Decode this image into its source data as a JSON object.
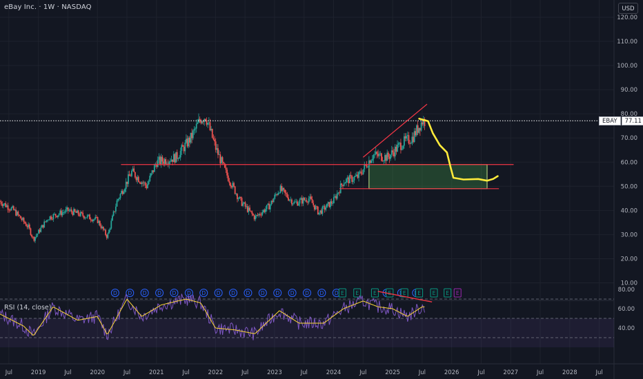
{
  "header": {
    "title": "eBay Inc. · 1W · NASDAQ",
    "currency": "USD"
  },
  "price_marker": {
    "symbol": "EBAY",
    "value": "77.11"
  },
  "rsi": {
    "label": "RSI (14, close)",
    "levels": [
      "80.00",
      "60.00",
      "40.00"
    ]
  },
  "price_axis": {
    "ticks": [
      "120.00",
      "110.00",
      "100.00",
      "90.00",
      "80.00",
      "70.00",
      "60.00",
      "50.00",
      "40.00",
      "30.00",
      "20.00",
      "10.00"
    ]
  },
  "time_axis": {
    "ticks": [
      "Jul",
      "2019",
      "Jul",
      "2020",
      "Jul",
      "2021",
      "Jul",
      "2022",
      "Jul",
      "2023",
      "Jul",
      "2024",
      "Jul",
      "2025",
      "Jul",
      "2026",
      "Jul",
      "2027",
      "Jul",
      "2028",
      "Jul"
    ]
  },
  "events": {
    "dividends": [
      "D",
      "D",
      "D",
      "D",
      "D",
      "D",
      "D",
      "D",
      "D",
      "D",
      "D",
      "D",
      "D",
      "D",
      "D",
      "D",
      "D",
      "D",
      "D"
    ],
    "earnings_glyph": "E"
  },
  "colors": {
    "background": "#131722",
    "grid": "#1e222d",
    "up_candle": "#26a69a",
    "down_candle": "#ef5350",
    "trend_line": "#f23645",
    "projection": "#ffeb3b",
    "target_box": "#4caf50",
    "rsi_line": "#7e57c2",
    "rsi_ma": "#fdd835"
  },
  "chart_data": {
    "type": "candlestick",
    "symbol": "EBAY",
    "interval": "1W",
    "y_range": [
      0,
      122
    ],
    "x_range": [
      "2018-05",
      "2028-09"
    ],
    "last_close": 77.11,
    "price_path": [
      [
        "2018-05",
        44
      ],
      [
        "2018-08",
        40
      ],
      [
        "2018-11",
        33
      ],
      [
        "2018-12",
        28
      ],
      [
        "2019-03",
        37
      ],
      [
        "2019-07",
        40
      ],
      [
        "2019-10",
        38
      ],
      [
        "2020-01",
        36
      ],
      [
        "2020-03",
        29
      ],
      [
        "2020-05",
        44
      ],
      [
        "2020-08",
        56
      ],
      [
        "2020-11",
        50
      ],
      [
        "2021-01",
        60
      ],
      [
        "2021-05",
        62
      ],
      [
        "2021-08",
        70
      ],
      [
        "2021-10",
        78
      ],
      [
        "2021-11",
        79
      ],
      [
        "2022-01",
        66
      ],
      [
        "2022-03",
        56
      ],
      [
        "2022-06",
        44
      ],
      [
        "2022-09",
        37
      ],
      [
        "2022-12",
        42
      ],
      [
        "2023-02",
        49
      ],
      [
        "2023-05",
        43
      ],
      [
        "2023-08",
        45
      ],
      [
        "2023-10",
        39
      ],
      [
        "2024-01",
        44
      ],
      [
        "2024-03",
        52
      ],
      [
        "2024-06",
        54
      ],
      [
        "2024-09",
        63
      ],
      [
        "2024-12",
        62
      ],
      [
        "2025-03",
        68
      ],
      [
        "2025-05",
        70
      ],
      [
        "2025-07",
        77
      ]
    ],
    "rsi_path": [
      [
        "2018-05",
        55
      ],
      [
        "2018-10",
        42
      ],
      [
        "2018-12",
        32
      ],
      [
        "2019-04",
        62
      ],
      [
        "2019-09",
        48
      ],
      [
        "2020-01",
        52
      ],
      [
        "2020-03",
        33
      ],
      [
        "2020-07",
        70
      ],
      [
        "2020-10",
        52
      ],
      [
        "2021-02",
        64
      ],
      [
        "2021-07",
        70
      ],
      [
        "2021-10",
        66
      ],
      [
        "2022-01",
        40
      ],
      [
        "2022-05",
        38
      ],
      [
        "2022-09",
        34
      ],
      [
        "2023-02",
        58
      ],
      [
        "2023-06",
        45
      ],
      [
        "2023-11",
        45
      ],
      [
        "2024-03",
        60
      ],
      [
        "2024-07",
        68
      ],
      [
        "2024-10",
        62
      ],
      [
        "2025-01",
        60
      ],
      [
        "2025-04",
        52
      ],
      [
        "2025-07",
        62
      ]
    ],
    "annotations": {
      "support_resistance_line": 59,
      "lower_support_line": 49,
      "target_zone": [
        49,
        59
      ],
      "rising_wedge_line": [
        [
          "2024-07",
          62
        ],
        [
          "2025-08",
          84
        ]
      ],
      "rsi_divergence_line": [
        [
          "2024-10",
          78
        ],
        [
          "2025-09",
          67
        ]
      ]
    }
  }
}
